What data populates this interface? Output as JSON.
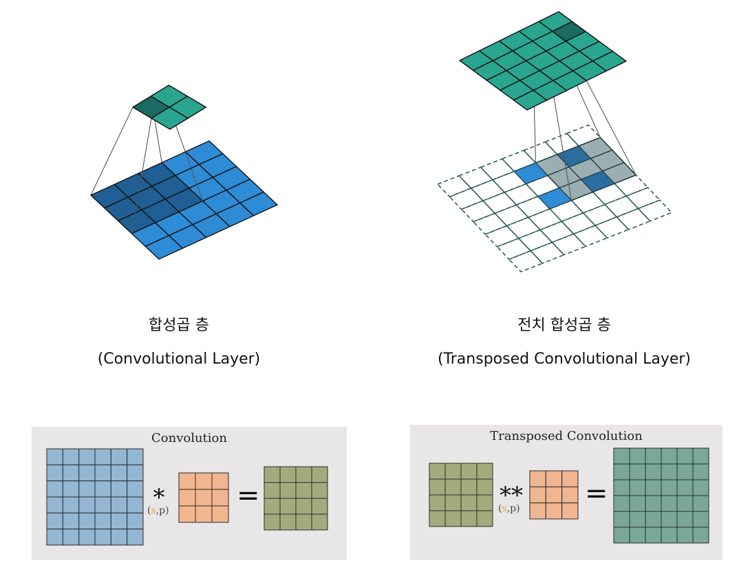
{
  "captions": {
    "conv_ko": "합성곱 층",
    "conv_en": "(Convolutional Layer)",
    "tconv_ko": "전치 합성곱 층",
    "tconv_en": "(Transposed Convolutional Layer)"
  },
  "panels": {
    "conv": {
      "title": "Convolution",
      "operator": "*",
      "stride_symbol": "s",
      "param_rest": ",p)",
      "param_open": "(",
      "equals": "=",
      "input_color": "#93b6d3",
      "kernel_color": "#efb68f",
      "output_color": "#a3aa7c",
      "input_size": 6,
      "kernel_size": 3,
      "output_size": 4
    },
    "tconv": {
      "title": "Transposed Convolution",
      "operator": "**",
      "stride_symbol": "s",
      "param_rest": ",p)",
      "param_open": "(",
      "equals": "=",
      "input_color": "#a3aa7c",
      "kernel_color": "#efb68f",
      "output_color": "#79a89a",
      "input_size": 4,
      "kernel_size": 3,
      "output_size": 6
    }
  },
  "colors": {
    "conv_input": "#2e8bd6",
    "conv_input_active": "#1f5f93",
    "conv_output": "#2aa58f",
    "conv_output_active": "#1b6b62",
    "tconv_output": "#2aa58f",
    "tconv_output_active": "#1b6b62",
    "tconv_input_cell": "#2e8bd6",
    "tconv_kernel_window": "#9aaeb3",
    "tconv_dashed": "#2e5e58"
  }
}
